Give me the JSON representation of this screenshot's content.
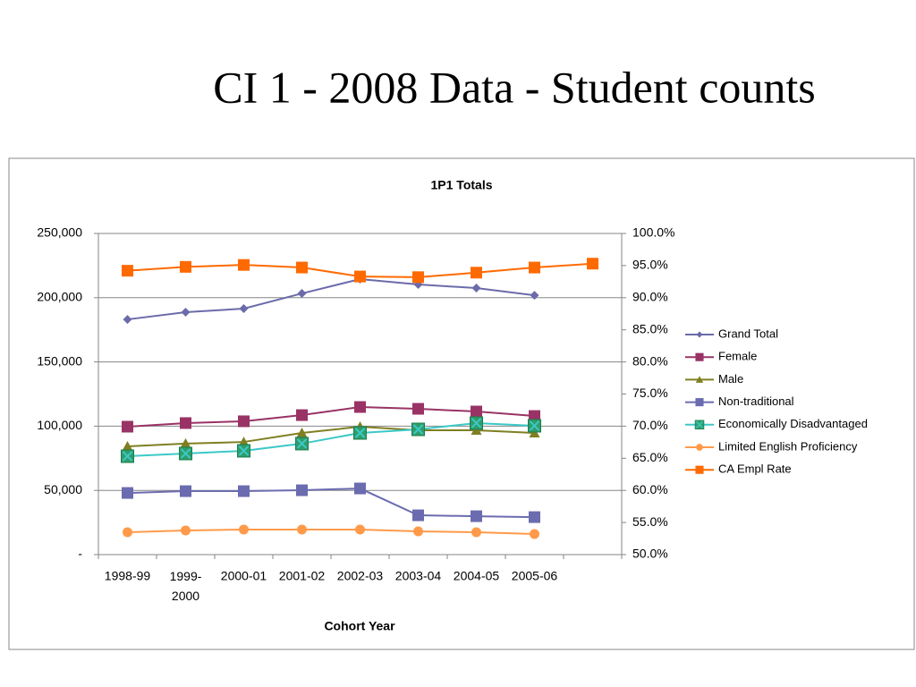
{
  "slide_title": "CI 1 - 2008 Data - Student counts",
  "chart_data": {
    "type": "line",
    "title": "1P1 Totals",
    "x_label": "Cohort Year",
    "categories": [
      "1998-99",
      "1999-2000",
      "2000-01",
      "2001-02",
      "2002-03",
      "2003-04",
      "2004-05",
      "2005-06",
      null
    ],
    "ylim": [
      0,
      250000
    ],
    "yticks": [
      {
        "value": 0,
        "label": "-"
      },
      {
        "value": 50000,
        "label": "50,000"
      },
      {
        "value": 100000,
        "label": "100,000"
      },
      {
        "value": 150000,
        "label": "150,000"
      },
      {
        "value": 200000,
        "label": "200,000"
      },
      {
        "value": 250000,
        "label": "250,000"
      }
    ],
    "y2lim": [
      50,
      100
    ],
    "y2ticks": [
      {
        "value": 50,
        "label": "50.0%"
      },
      {
        "value": 55,
        "label": "55.0%"
      },
      {
        "value": 60,
        "label": "60.0%"
      },
      {
        "value": 65,
        "label": "65.0%"
      },
      {
        "value": 70,
        "label": "70.0%"
      },
      {
        "value": 75,
        "label": "75.0%"
      },
      {
        "value": 80,
        "label": "80.0%"
      },
      {
        "value": 85,
        "label": "85.0%"
      },
      {
        "value": 90,
        "label": "90.0%"
      },
      {
        "value": 95,
        "label": "95.0%"
      },
      {
        "value": 100,
        "label": "100.0%"
      }
    ],
    "grid": true,
    "legend": "right",
    "series": [
      {
        "name": "Grand Total",
        "color": "#6b6baa",
        "marker": "diamond",
        "values": [
          183100,
          188700,
          191500,
          203300,
          214500,
          210300,
          207500,
          201900,
          null
        ]
      },
      {
        "name": "Female",
        "color": "#993366",
        "marker": "square",
        "values": [
          99600,
          102400,
          103800,
          108600,
          114900,
          113500,
          111400,
          107900,
          null
        ]
      },
      {
        "name": "Male",
        "color": "#7f7f22",
        "marker": "triangle",
        "values": [
          84300,
          86400,
          87700,
          94700,
          99600,
          96800,
          96800,
          94700,
          null
        ]
      },
      {
        "name": "Non-traditional",
        "color": "#6b6bb0",
        "marker": "square",
        "values": [
          48000,
          49400,
          49400,
          50100,
          51500,
          30600,
          29900,
          29200,
          null
        ]
      },
      {
        "name": "Economically Disadvantaged",
        "color": "#3cc8c8",
        "marker": "x-square",
        "values": [
          76600,
          78700,
          80800,
          86400,
          94700,
          97500,
          102400,
          100300,
          null
        ]
      },
      {
        "name": "Limited English Proficiency",
        "color": "#ff9a4a",
        "marker": "circle",
        "values": [
          17400,
          18800,
          19500,
          19500,
          19500,
          18100,
          17400,
          16000,
          null
        ]
      },
      {
        "name": "CA Empl Rate",
        "color": "#ff6a00",
        "marker": "square",
        "axis": "y2",
        "values": [
          94.2,
          94.8,
          95.1,
          94.7,
          93.3,
          93.2,
          93.9,
          94.7,
          95.3
        ]
      }
    ]
  }
}
